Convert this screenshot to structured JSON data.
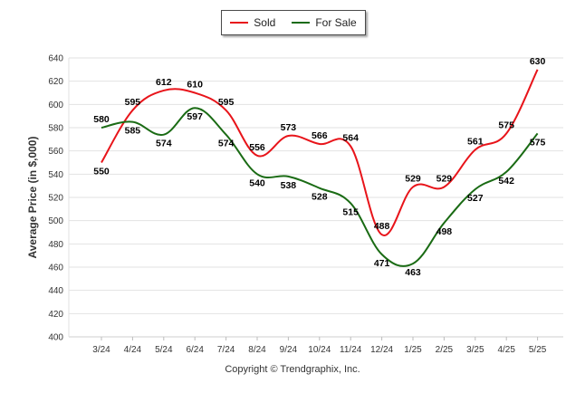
{
  "legend": {
    "sold_label": "Sold",
    "forsale_label": "For Sale"
  },
  "copyright": "Copyright © Trendgraphix, Inc.",
  "chart_data": {
    "type": "line",
    "title": "",
    "xlabel": "",
    "ylabel": "Average Price (in $,000)",
    "categories": [
      "3/24",
      "4/24",
      "5/24",
      "6/24",
      "7/24",
      "8/24",
      "9/24",
      "10/24",
      "11/24",
      "12/24",
      "1/25",
      "2/25",
      "3/25",
      "4/25",
      "5/25"
    ],
    "ylim": [
      400,
      640
    ],
    "yticks": [
      400,
      420,
      440,
      460,
      480,
      500,
      520,
      540,
      560,
      580,
      600,
      620,
      640
    ],
    "grid": true,
    "legend_position": "top-center",
    "series": [
      {
        "name": "Sold",
        "color": "#e8141a",
        "values": [
          550,
          595,
          612,
          610,
          595,
          556,
          573,
          566,
          564,
          488,
          529,
          529,
          561,
          575,
          630
        ]
      },
      {
        "name": "For Sale",
        "color": "#1a6b14",
        "values": [
          580,
          585,
          574,
          597,
          574,
          540,
          538,
          528,
          515,
          471,
          463,
          498,
          527,
          542,
          575
        ]
      }
    ]
  }
}
